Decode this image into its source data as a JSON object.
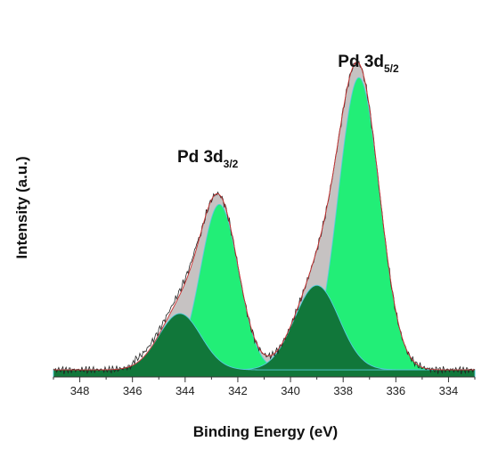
{
  "chart_data": {
    "type": "area",
    "xlabel": "Binding Energy (eV)",
    "ylabel": "Intensity (a.u.)",
    "x_reversed": true,
    "xlim": [
      349,
      333
    ],
    "ylim": [
      0,
      1.05
    ],
    "xticks": [
      348,
      346,
      344,
      342,
      340,
      338,
      336,
      334
    ],
    "baseline": 0.02,
    "series": [
      {
        "center": 337.4,
        "height": 0.83,
        "sigma": 0.78,
        "color": "#22ee77"
      },
      {
        "center": 342.7,
        "height": 0.47,
        "sigma": 0.72,
        "color": "#22ee77"
      },
      {
        "center": 339.0,
        "height": 0.24,
        "sigma": 0.85,
        "color": "#11773a"
      },
      {
        "center": 344.2,
        "height": 0.16,
        "sigma": 0.8,
        "color": "#11773a"
      }
    ],
    "envelope_color": "#c6c2c2",
    "raw_line_color": "#222222",
    "fit_line_color": "#cc3333",
    "annotations": [
      {
        "text": "Pd 3d",
        "subscript": "3/2",
        "x": 344.3,
        "y": 0.61
      },
      {
        "text": "Pd 3d",
        "subscript": "5/2",
        "x": 338.2,
        "y": 0.88
      }
    ]
  }
}
